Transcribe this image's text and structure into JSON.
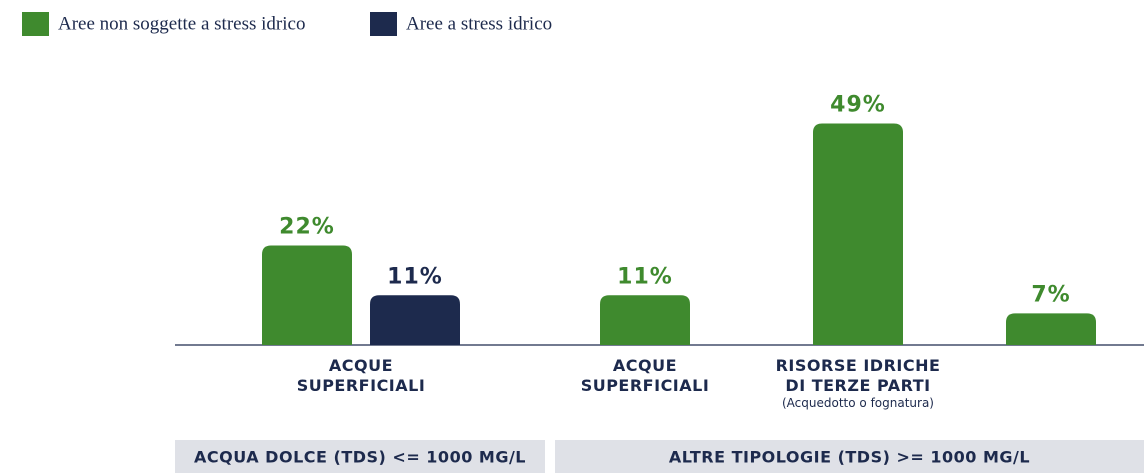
{
  "chart_data": {
    "type": "bar",
    "legend": "top-left",
    "groups": [
      {
        "name": "ACQUA DOLCE (TDS) <= 1000 MG/L",
        "categories": [
          "ACQUE SUPERFICIALI"
        ],
        "category_notes": [
          null
        ]
      },
      {
        "name": "ALTRE TIPOLOGIE (TDS) >= 1000 MG/L",
        "categories": [
          "ACQUE SUPERFICIALI",
          "RISORSE IDRICHE DI TERZE PARTI",
          null
        ],
        "category_notes": [
          null,
          "(Acquedotto o fognatura)",
          null
        ]
      }
    ],
    "series": [
      {
        "name": "Aree non soggette a stress idrico",
        "color": "#3f8a2e",
        "values": [
          22,
          11,
          49,
          7
        ],
        "value_labels": [
          "22%",
          "11%",
          "49%",
          "7%"
        ]
      },
      {
        "name": "Aree a stress idrico",
        "color": "#1d2a4d",
        "values": [
          11,
          null,
          null,
          null
        ],
        "value_labels": [
          "11%",
          null,
          null,
          null
        ]
      }
    ],
    "ylim": [
      0,
      50
    ]
  }
}
